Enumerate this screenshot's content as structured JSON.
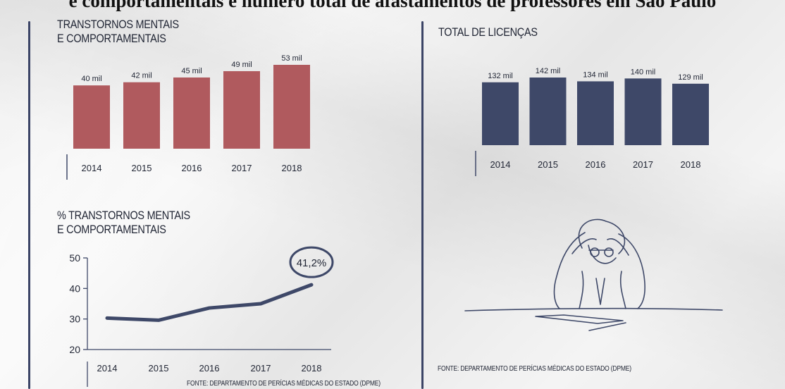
{
  "header": {
    "title": "e comportamentais e número total de afastamentos de professores em São Paulo"
  },
  "footnotes": {
    "left": "FONTE: DEPARTAMENTO DE PERÍCIAS MÉDICAS DO ESTADO (DPME)",
    "right": "FONTE: DEPARTAMENTO DE PERÍCIAS MÉDICAS DO ESTADO (DPME)"
  },
  "colors": {
    "red_bar": "#b05a5e",
    "navy_bar": "#3e4868",
    "line": "#3e4868",
    "text": "#1f2433"
  },
  "chart_data": [
    {
      "type": "bar",
      "title": [
        "TRANSTORNOS MENTAIS",
        "E COMPORTAMENTAIS"
      ],
      "categories": [
        "2014",
        "2015",
        "2016",
        "2017",
        "2018"
      ],
      "values": [
        40,
        42,
        45,
        49,
        53
      ],
      "labels": [
        "40 mil",
        "42 mil",
        "45 mil",
        "49 mil",
        "53 mil"
      ],
      "unit": "mil",
      "color": "#b05a5e"
    },
    {
      "type": "bar",
      "title": [
        "TOTAL DE LICENÇAS"
      ],
      "categories": [
        "2014",
        "2015",
        "2016",
        "2017",
        "2018"
      ],
      "values": [
        132,
        142,
        134,
        140,
        129
      ],
      "labels": [
        "132 mil",
        "142 mil",
        "134 mil",
        "140 mil",
        "129 mil"
      ],
      "unit": "mil",
      "color": "#3e4868"
    },
    {
      "type": "line",
      "title": [
        "% TRANSTORNOS MENTAIS",
        "E COMPORTAMENTAIS"
      ],
      "x": [
        "2014",
        "2015",
        "2016",
        "2017",
        "2018"
      ],
      "values": [
        30.3,
        29.6,
        33.6,
        35.0,
        41.2
      ],
      "ylim": [
        20,
        50
      ],
      "yticks": [
        20,
        30,
        40,
        50
      ],
      "annotation": "41,2%",
      "color": "#3e4868"
    }
  ]
}
